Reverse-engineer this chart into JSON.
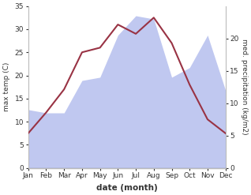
{
  "months": [
    "Jan",
    "Feb",
    "Mar",
    "Apr",
    "May",
    "Jun",
    "Jul",
    "Aug",
    "Sep",
    "Oct",
    "Nov",
    "Dec"
  ],
  "temperature": [
    7.5,
    12.0,
    17.0,
    25.0,
    26.0,
    31.0,
    29.0,
    32.5,
    27.0,
    18.0,
    10.5,
    7.5
  ],
  "precipitation": [
    9.0,
    8.5,
    8.5,
    13.5,
    14.0,
    20.5,
    23.5,
    23.0,
    14.0,
    15.5,
    20.5,
    12.0
  ],
  "temp_color": "#993344",
  "precip_fill_color": "#c0c8f0",
  "temp_ylim": [
    0,
    35
  ],
  "precip_ylim": [
    0,
    25
  ],
  "temp_yticks": [
    0,
    5,
    10,
    15,
    20,
    25,
    30,
    35
  ],
  "precip_yticks": [
    0,
    5,
    10,
    15,
    20
  ],
  "xlabel": "date (month)",
  "ylabel_left": "max temp (C)",
  "ylabel_right": "med. precipitation (kg/m2)",
  "figsize": [
    3.18,
    2.47
  ],
  "dpi": 100
}
